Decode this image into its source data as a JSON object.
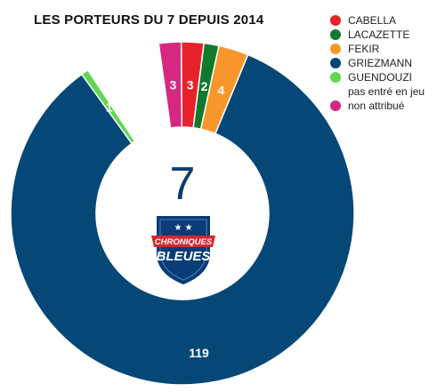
{
  "chart_data": {
    "type": "pie",
    "style": "donut",
    "title": "LES PORTEURS DU 7 DEPUIS 2014",
    "center_value": "7",
    "legend_position": "top-right",
    "slices": [
      {
        "name": "non attribué",
        "value": 3,
        "label": "3",
        "color": "#d6287e"
      },
      {
        "name": "CABELLA",
        "value": 3,
        "label": "3",
        "color": "#e8222b"
      },
      {
        "name": "LACAZETTE",
        "value": 2,
        "label": "2",
        "color": "#0f7a2c"
      },
      {
        "name": "FEKIR",
        "value": 4,
        "label": "4",
        "color": "#f7962b"
      },
      {
        "name": "GRIEZMANN",
        "value": 119,
        "label": "119",
        "color": "#054878"
      },
      {
        "name": "GUENDOUZI",
        "value": 1,
        "label": "1",
        "color": "#5dd84f"
      },
      {
        "name": "pas entré en jeu",
        "value": 10,
        "label": "10",
        "color": "#ffffff"
      }
    ]
  },
  "legend": [
    {
      "label": "CABELLA",
      "color": "#e8222b"
    },
    {
      "label": "LACAZETTE",
      "color": "#0f7a2c"
    },
    {
      "label": "FEKIR",
      "color": "#f7962b"
    },
    {
      "label": "GRIEZMANN",
      "color": "#054878"
    },
    {
      "label": "GUENDOUZI",
      "color": "#5dd84f"
    },
    {
      "label": "pas entré en jeu",
      "color": ""
    },
    {
      "label": "non attribué",
      "color": "#d6287e"
    }
  ],
  "logo": {
    "line1": "CHRONIQUES",
    "line2": "BLEUES"
  }
}
